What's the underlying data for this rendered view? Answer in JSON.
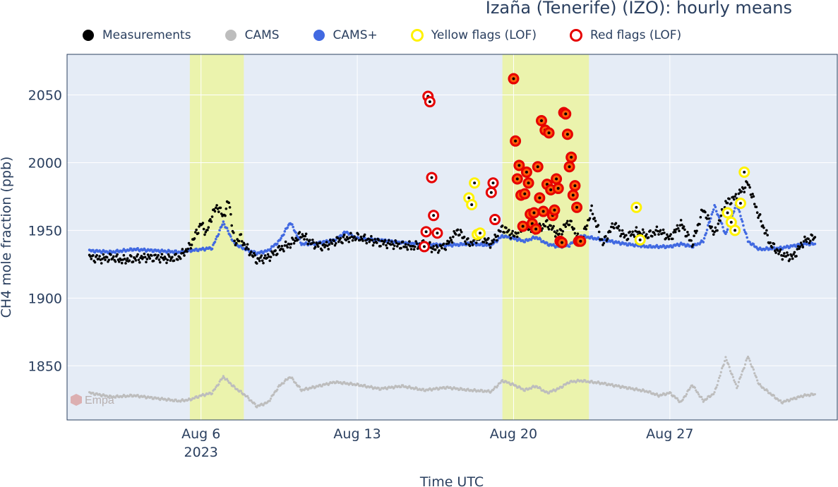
{
  "colors": {
    "plot_bg": "#E5ECF6",
    "grid": "#ffffff",
    "measurements": "#000000",
    "cams": "#BDBDBD",
    "cams_plus": "#4169E1",
    "yellow_flag": "#FFF200",
    "red_flag": "#E60000",
    "orange_flag_fill": "#FF5A0A",
    "highlight_band": "#ECF5A0",
    "text": "#2A3F5F"
  },
  "chart_data": {
    "type": "scatter",
    "title": "Izaña (Tenerife) (IZO): hourly means",
    "xlabel": "Time UTC",
    "ylabel": "CH4 mole fraction (ppb)",
    "x_ticks": [
      {
        "date": "2023-08-06",
        "label": "Aug 6",
        "sublabel": "2023"
      },
      {
        "date": "2023-08-13",
        "label": "Aug 13"
      },
      {
        "date": "2023-08-20",
        "label": "Aug 20"
      },
      {
        "date": "2023-08-27",
        "label": "Aug 27"
      }
    ],
    "x_range": [
      "2023-07-31T00:00",
      "2023-09-03T12:00"
    ],
    "y_ticks": [
      1850,
      1900,
      1950,
      2000,
      2050
    ],
    "ylim": [
      1810,
      2080
    ],
    "grid": true,
    "legend_position": "top",
    "legend": [
      {
        "key": "measurements",
        "label": "Measurements"
      },
      {
        "key": "cams",
        "label": "CAMS"
      },
      {
        "key": "cams_plus",
        "label": "CAMS+"
      },
      {
        "key": "yellow_flags",
        "label": "Yellow flags (LOF)"
      },
      {
        "key": "red_flags",
        "label": "Red flags (LOF)"
      }
    ],
    "highlight_bands": [
      {
        "start": "2023-08-05T12:00",
        "end": "2023-08-07T22:00"
      },
      {
        "start": "2023-08-19T12:00",
        "end": "2023-08-23T09:00"
      }
    ],
    "series": [
      {
        "key": "cams",
        "name": "CAMS",
        "x": [
          "2023-08-01T00:00",
          "2023-08-02T00:00",
          "2023-08-03T00:00",
          "2023-08-04T00:00",
          "2023-08-05T00:00",
          "2023-08-05T12:00",
          "2023-08-06T00:00",
          "2023-08-06T12:00",
          "2023-08-07T00:00",
          "2023-08-07T12:00",
          "2023-08-08T00:00",
          "2023-08-08T12:00",
          "2023-08-09T00:00",
          "2023-08-09T12:00",
          "2023-08-10T00:00",
          "2023-08-10T12:00",
          "2023-08-11T00:00",
          "2023-08-12T00:00",
          "2023-08-13T00:00",
          "2023-08-14T00:00",
          "2023-08-15T00:00",
          "2023-08-16T00:00",
          "2023-08-17T00:00",
          "2023-08-18T00:00",
          "2023-08-19T00:00",
          "2023-08-19T12:00",
          "2023-08-20T00:00",
          "2023-08-20T12:00",
          "2023-08-21T00:00",
          "2023-08-21T12:00",
          "2023-08-22T00:00",
          "2023-08-22T12:00",
          "2023-08-23T00:00",
          "2023-08-24T00:00",
          "2023-08-25T00:00",
          "2023-08-26T00:00",
          "2023-08-26T12:00",
          "2023-08-27T00:00",
          "2023-08-27T12:00",
          "2023-08-28T00:00",
          "2023-08-28T12:00",
          "2023-08-29T00:00",
          "2023-08-29T12:00",
          "2023-08-30T00:00",
          "2023-08-30T12:00",
          "2023-08-31T00:00",
          "2023-09-01T00:00",
          "2023-09-02T00:00",
          "2023-09-02T12:00"
        ],
        "y": [
          1830,
          1827,
          1828,
          1826,
          1824,
          1825,
          1828,
          1830,
          1842,
          1834,
          1828,
          1820,
          1823,
          1835,
          1842,
          1832,
          1834,
          1838,
          1836,
          1833,
          1835,
          1832,
          1834,
          1832,
          1831,
          1839,
          1836,
          1832,
          1835,
          1830,
          1833,
          1838,
          1839,
          1837,
          1834,
          1831,
          1828,
          1830,
          1823,
          1836,
          1824,
          1830,
          1856,
          1834,
          1857,
          1836,
          1823,
          1828,
          1829
        ]
      },
      {
        "key": "cams_plus",
        "name": "CAMS+",
        "x": [
          "2023-08-01T00:00",
          "2023-08-02T00:00",
          "2023-08-03T00:00",
          "2023-08-04T00:00",
          "2023-08-05T00:00",
          "2023-08-05T12:00",
          "2023-08-06T00:00",
          "2023-08-06T12:00",
          "2023-08-07T00:00",
          "2023-08-07T12:00",
          "2023-08-08T00:00",
          "2023-08-08T12:00",
          "2023-08-09T00:00",
          "2023-08-09T12:00",
          "2023-08-10T00:00",
          "2023-08-10T12:00",
          "2023-08-11T00:00",
          "2023-08-12T00:00",
          "2023-08-12T12:00",
          "2023-08-13T00:00",
          "2023-08-14T00:00",
          "2023-08-15T00:00",
          "2023-08-16T00:00",
          "2023-08-17T00:00",
          "2023-08-18T00:00",
          "2023-08-19T00:00",
          "2023-08-19T12:00",
          "2023-08-20T00:00",
          "2023-08-20T12:00",
          "2023-08-21T00:00",
          "2023-08-21T12:00",
          "2023-08-22T00:00",
          "2023-08-22T12:00",
          "2023-08-23T00:00",
          "2023-08-24T00:00",
          "2023-08-25T00:00",
          "2023-08-26T00:00",
          "2023-08-26T12:00",
          "2023-08-27T00:00",
          "2023-08-27T12:00",
          "2023-08-28T00:00",
          "2023-08-28T12:00",
          "2023-08-29T00:00",
          "2023-08-29T12:00",
          "2023-08-30T00:00",
          "2023-08-30T12:00",
          "2023-08-31T00:00",
          "2023-09-01T00:00",
          "2023-09-02T00:00",
          "2023-09-02T12:00"
        ],
        "y": [
          1935,
          1934,
          1936,
          1935,
          1934,
          1935,
          1936,
          1937,
          1956,
          1940,
          1936,
          1933,
          1935,
          1942,
          1956,
          1940,
          1940,
          1943,
          1949,
          1944,
          1943,
          1941,
          1940,
          1939,
          1940,
          1939,
          1946,
          1944,
          1942,
          1945,
          1940,
          1938,
          1939,
          1946,
          1943,
          1940,
          1938,
          1938,
          1938,
          1940,
          1938,
          1942,
          1968,
          1947,
          1970,
          1942,
          1936,
          1937,
          1940,
          1940
        ]
      },
      {
        "key": "measurements",
        "name": "Measurements",
        "x": [
          "2023-08-01T00:00",
          "2023-08-01T12:00",
          "2023-08-02T00:00",
          "2023-08-02T12:00",
          "2023-08-03T00:00",
          "2023-08-03T12:00",
          "2023-08-04T00:00",
          "2023-08-04T12:00",
          "2023-08-05T00:00",
          "2023-08-05T12:00",
          "2023-08-06T00:00",
          "2023-08-06T06:00",
          "2023-08-06T12:00",
          "2023-08-06T18:00",
          "2023-08-07T00:00",
          "2023-08-07T06:00",
          "2023-08-07T12:00",
          "2023-08-07T18:00",
          "2023-08-08T00:00",
          "2023-08-08T12:00",
          "2023-08-09T00:00",
          "2023-08-09T12:00",
          "2023-08-10T00:00",
          "2023-08-10T12:00",
          "2023-08-11T00:00",
          "2023-08-11T12:00",
          "2023-08-12T00:00",
          "2023-08-12T12:00",
          "2023-08-13T00:00",
          "2023-08-13T12:00",
          "2023-08-14T00:00",
          "2023-08-14T12:00",
          "2023-08-15T00:00",
          "2023-08-15T12:00",
          "2023-08-16T00:00",
          "2023-08-16T12:00",
          "2023-08-17T00:00",
          "2023-08-17T12:00",
          "2023-08-18T00:00",
          "2023-08-18T12:00",
          "2023-08-19T00:00",
          "2023-08-19T12:00",
          "2023-08-20T00:00",
          "2023-08-20T12:00",
          "2023-08-21T00:00",
          "2023-08-21T12:00",
          "2023-08-22T00:00",
          "2023-08-22T12:00",
          "2023-08-23T00:00",
          "2023-08-23T12:00",
          "2023-08-24T00:00",
          "2023-08-24T12:00",
          "2023-08-25T00:00",
          "2023-08-25T12:00",
          "2023-08-26T00:00",
          "2023-08-26T12:00",
          "2023-08-27T00:00",
          "2023-08-27T12:00",
          "2023-08-28T00:00",
          "2023-08-28T12:00",
          "2023-08-29T00:00",
          "2023-08-29T12:00",
          "2023-08-30T00:00",
          "2023-08-30T12:00",
          "2023-08-31T00:00",
          "2023-08-31T12:00",
          "2023-09-01T00:00",
          "2023-09-01T12:00",
          "2023-09-02T00:00",
          "2023-09-02T12:00"
        ],
        "y": [
          1930,
          1929,
          1930,
          1928,
          1929,
          1930,
          1930,
          1929,
          1930,
          1938,
          1955,
          1948,
          1962,
          1968,
          1960,
          1972,
          1940,
          1945,
          1938,
          1928,
          1930,
          1936,
          1940,
          1947,
          1940,
          1938,
          1942,
          1944,
          1945,
          1943,
          1941,
          1940,
          1939,
          1938,
          1940,
          1936,
          1939,
          1950,
          1940,
          1945,
          1940,
          1952,
          1946,
          1953,
          1950,
          1955,
          1947,
          1957,
          1940,
          1965,
          1940,
          1955,
          1945,
          1949,
          1946,
          1950,
          1944,
          1955,
          1940,
          1966,
          1947,
          1970,
          1975,
          1985,
          1960,
          1940,
          1932,
          1930,
          1942,
          1945
        ]
      },
      {
        "key": "yellow_flags",
        "name": "Yellow flags (LOF)",
        "x": [
          "2023-08-18T00:00",
          "2023-08-18T03:00",
          "2023-08-18T06:00",
          "2023-08-18T09:00",
          "2023-08-18T12:00",
          "2023-08-25T12:00",
          "2023-08-25T16:00",
          "2023-08-29T14:00",
          "2023-08-29T18:00",
          "2023-08-29T22:00",
          "2023-08-30T04:00",
          "2023-08-30T08:00"
        ],
        "y": [
          1974,
          1969,
          1985,
          1947,
          1948,
          1967,
          1943,
          1963,
          1956,
          1950,
          1970,
          1993
        ]
      },
      {
        "key": "red_flags",
        "name": "Red flags (LOF)",
        "x": [
          "2023-08-16T00:00",
          "2023-08-16T02:00",
          "2023-08-16T04:00",
          "2023-08-16T06:00",
          "2023-08-16T08:00",
          "2023-08-16T10:00",
          "2023-08-16T14:00",
          "2023-08-19T00:00",
          "2023-08-19T02:00",
          "2023-08-19T04:00",
          "2023-08-20T00:00",
          "2023-08-20T02:00",
          "2023-08-20T04:00",
          "2023-08-20T06:00",
          "2023-08-20T08:00",
          "2023-08-20T10:00",
          "2023-08-20T12:00",
          "2023-08-20T14:00",
          "2023-08-20T16:00",
          "2023-08-20T18:00",
          "2023-08-20T20:00",
          "2023-08-20T22:00",
          "2023-08-21T00:00",
          "2023-08-21T02:00",
          "2023-08-21T04:00",
          "2023-08-21T06:00",
          "2023-08-21T08:00",
          "2023-08-21T10:00",
          "2023-08-21T12:00",
          "2023-08-21T14:00",
          "2023-08-21T16:00",
          "2023-08-21T18:00",
          "2023-08-21T20:00",
          "2023-08-21T22:00",
          "2023-08-22T00:00",
          "2023-08-22T02:00",
          "2023-08-22T04:00",
          "2023-08-22T06:00",
          "2023-08-22T08:00",
          "2023-08-22T10:00",
          "2023-08-22T12:00",
          "2023-08-22T14:00",
          "2023-08-22T16:00",
          "2023-08-22T18:00",
          "2023-08-22T20:00",
          "2023-08-22T22:00",
          "2023-08-23T00:00"
        ],
        "y": [
          1938,
          1949,
          2049,
          2045,
          1989,
          1961,
          1948,
          1978,
          1985,
          1958,
          2062,
          2016,
          1988,
          1998,
          1976,
          1953,
          1977,
          1993,
          1985,
          1962,
          1955,
          1963,
          1951,
          1997,
          1974,
          2031,
          1964,
          2024,
          1984,
          2022,
          1980,
          1961,
          1965,
          1988,
          1981,
          1942,
          1941,
          2037,
          2036,
          2021,
          1997,
          2004,
          1976,
          1983,
          1967,
          1942,
          1942
        ]
      }
    ],
    "annotations": [
      {
        "text": "Empa",
        "position": "bottom-left",
        "kind": "logo"
      }
    ]
  }
}
